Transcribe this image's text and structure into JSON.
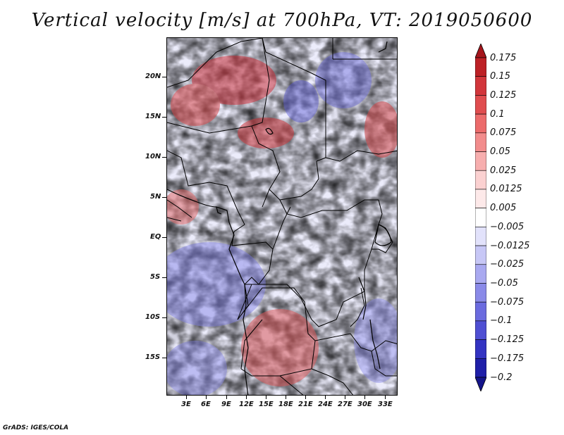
{
  "title": "Vertical velocity [m/s] at 700hPa, VT: 2019050600",
  "credit": "GrADS: IGES/COLA",
  "y_axis": [
    "20N",
    "15N",
    "10N",
    "5N",
    "EQ",
    "5S",
    "10S",
    "15S"
  ],
  "x_axis": [
    "3E",
    "6E",
    "9E",
    "12E",
    "15E",
    "18E",
    "21E",
    "24E",
    "27E",
    "30E",
    "33E"
  ],
  "colorbar": {
    "labels": [
      "0.175",
      "0.15",
      "0.125",
      "0.1",
      "0.075",
      "0.05",
      "0.025",
      "0.0125",
      "0.005",
      "−0.005",
      "−0.0125",
      "−0.025",
      "−0.05",
      "−0.075",
      "−0.1",
      "−0.125",
      "−0.175",
      "−0.2"
    ],
    "colors": [
      "#a5161c",
      "#bd2126",
      "#d2363b",
      "#e04d4f",
      "#ec6b6b",
      "#f28c8c",
      "#f7aeae",
      "#fbd1d1",
      "#fde9e9",
      "#ffffff",
      "#e2e2fb",
      "#c7c7f6",
      "#a9a9f0",
      "#8a8ae8",
      "#6b6bdf",
      "#4f4fd3",
      "#3333c2",
      "#1f1fa8",
      "#14148a"
    ]
  }
}
